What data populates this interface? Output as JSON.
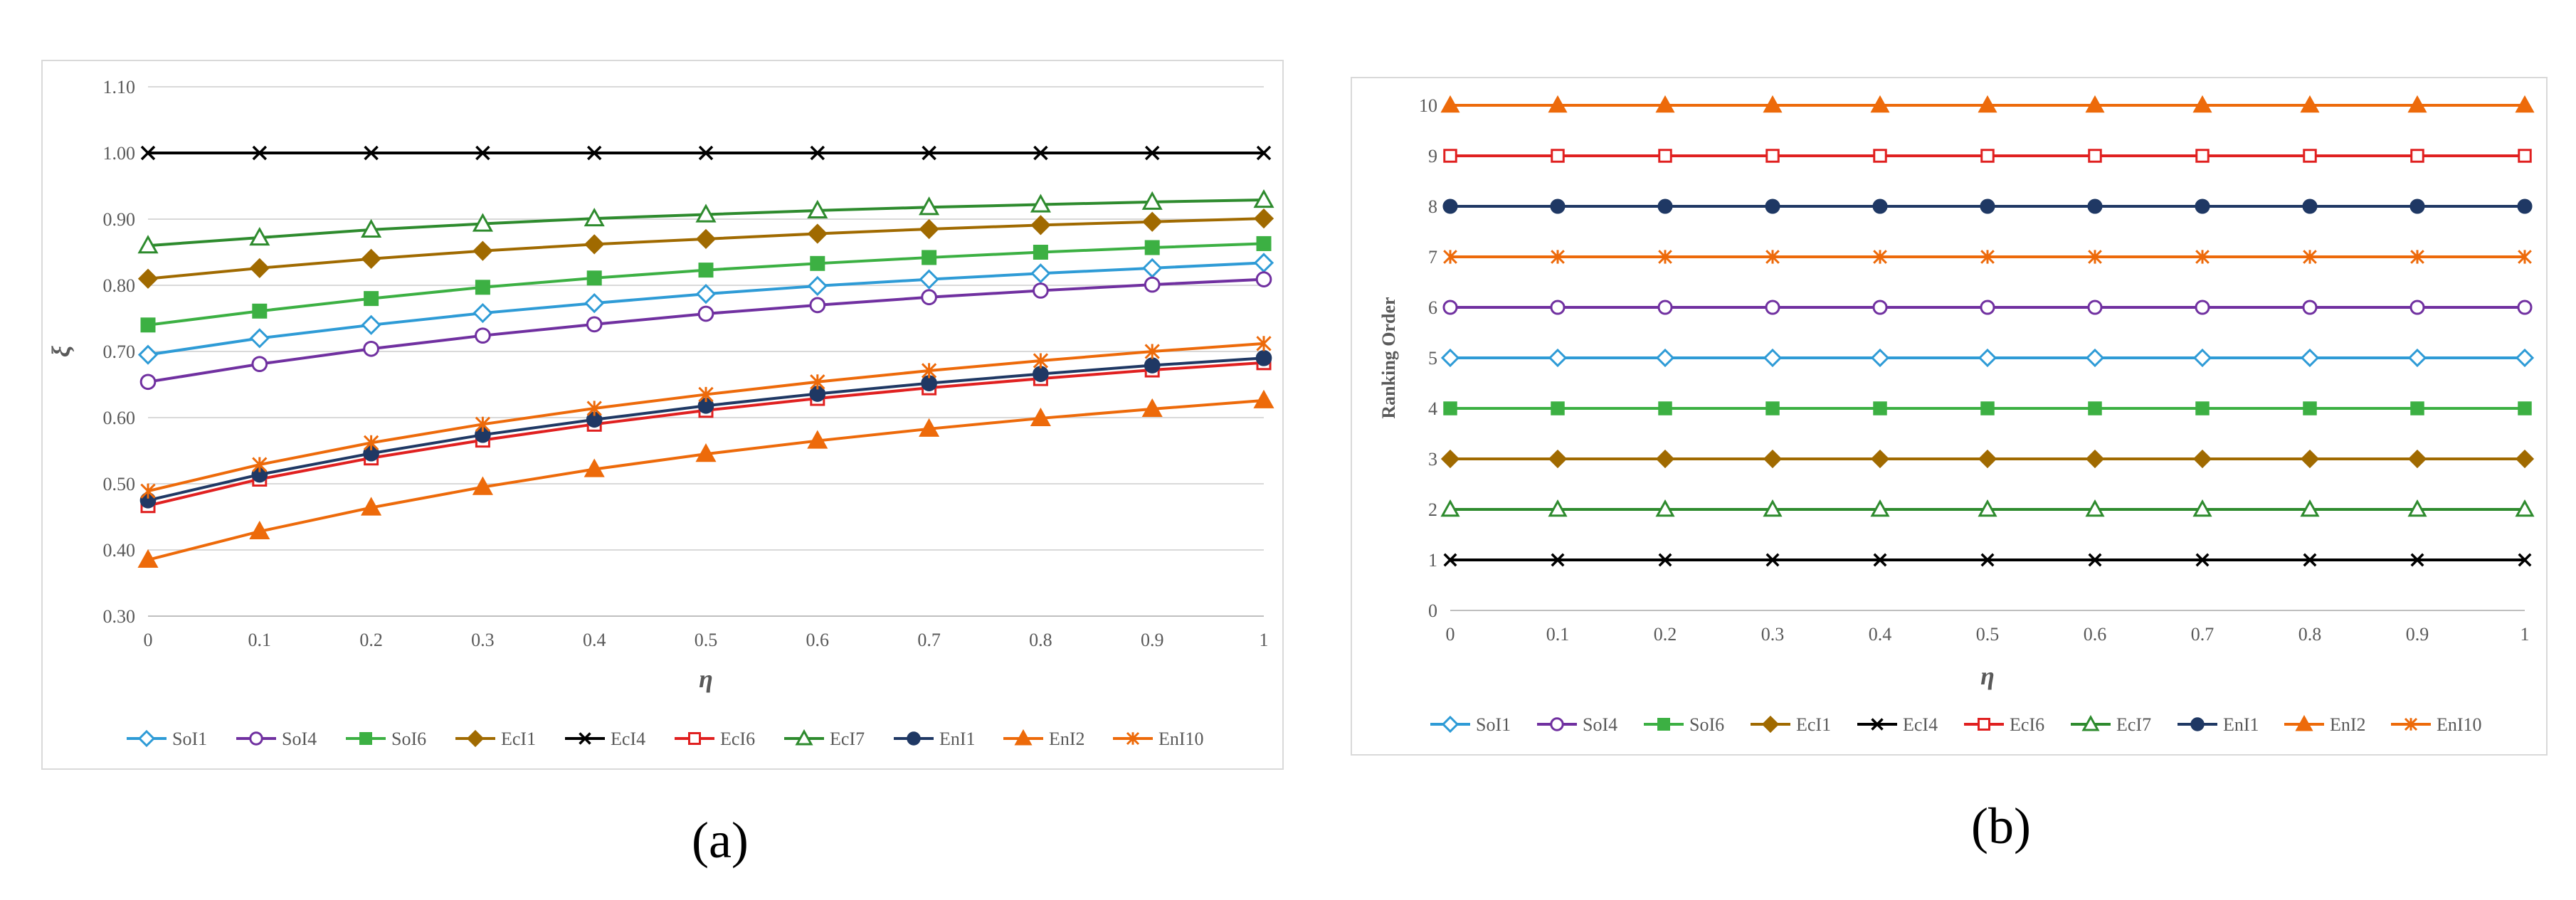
{
  "captions": {
    "a": "(a)",
    "b": "(b)"
  },
  "legend_series": [
    "SoI1",
    "SoI4",
    "SoI6",
    "EcI1",
    "EcI4",
    "EcI6",
    "EcI7",
    "EnI1",
    "EnI2",
    "EnI10"
  ],
  "styles": {
    "SoI1": {
      "color": "#2e9bd6",
      "marker": "diamond-open"
    },
    "SoI4": {
      "color": "#7030a0",
      "marker": "circle-open"
    },
    "SoI6": {
      "color": "#3cb043",
      "marker": "square-filled"
    },
    "EcI1": {
      "color": "#a06a00",
      "marker": "diamond-filled"
    },
    "EcI4": {
      "color": "#000000",
      "marker": "x"
    },
    "EcI6": {
      "color": "#e02020",
      "marker": "square-open"
    },
    "EcI7": {
      "color": "#2e8b2e",
      "marker": "triangle-open"
    },
    "EnI1": {
      "color": "#1f3864",
      "marker": "circle-filled"
    },
    "EnI2": {
      "color": "#ed6a0a",
      "marker": "triangle-filled"
    },
    "EnI10": {
      "color": "#ed6a0a",
      "marker": "star"
    }
  },
  "chart_data": [
    {
      "type": "line",
      "panel": "a",
      "title": "",
      "xlabel": "η",
      "ylabel": "ξ",
      "x": [
        0,
        0.1,
        0.2,
        0.3,
        0.4,
        0.5,
        0.6,
        0.7,
        0.8,
        0.9,
        1
      ],
      "x_tick_labels": [
        "0",
        "0.1",
        "0.2",
        "0.3",
        "0.4",
        "0.5",
        "0.6",
        "0.7",
        "0.8",
        "0.9",
        "1"
      ],
      "ylim": [
        0.3,
        1.1
      ],
      "y_tick_labels": [
        "0.30",
        "0.40",
        "0.50",
        "0.60",
        "0.70",
        "0.80",
        "0.90",
        "1.00",
        "1.10"
      ],
      "grid": "horizontal",
      "legend_position": "bottom",
      "series": [
        {
          "name": "SoI1",
          "values": [
            0.695,
            0.72,
            0.74,
            0.758,
            0.773,
            0.787,
            0.799,
            0.809,
            0.818,
            0.826,
            0.834
          ]
        },
        {
          "name": "SoI4",
          "values": [
            0.654,
            0.681,
            0.704,
            0.724,
            0.741,
            0.757,
            0.77,
            0.782,
            0.792,
            0.801,
            0.809
          ]
        },
        {
          "name": "SoI6",
          "values": [
            0.74,
            0.761,
            0.78,
            0.797,
            0.811,
            0.823,
            0.833,
            0.842,
            0.85,
            0.857,
            0.863
          ]
        },
        {
          "name": "EcI1",
          "values": [
            0.81,
            0.826,
            0.84,
            0.852,
            0.862,
            0.87,
            0.878,
            0.885,
            0.891,
            0.896,
            0.901
          ]
        },
        {
          "name": "EcI4",
          "values": [
            1.0,
            1.0,
            1.0,
            1.0,
            1.0,
            1.0,
            1.0,
            1.0,
            1.0,
            1.0,
            1.0
          ]
        },
        {
          "name": "EcI6",
          "values": [
            0.467,
            0.507,
            0.539,
            0.566,
            0.59,
            0.611,
            0.629,
            0.645,
            0.659,
            0.672,
            0.683
          ]
        },
        {
          "name": "EcI7",
          "values": [
            0.86,
            0.872,
            0.884,
            0.893,
            0.901,
            0.907,
            0.913,
            0.918,
            0.922,
            0.926,
            0.929
          ]
        },
        {
          "name": "EnI1",
          "values": [
            0.475,
            0.514,
            0.546,
            0.574,
            0.597,
            0.618,
            0.636,
            0.652,
            0.666,
            0.679,
            0.69
          ]
        },
        {
          "name": "EnI2",
          "values": [
            0.385,
            0.428,
            0.464,
            0.495,
            0.522,
            0.545,
            0.565,
            0.583,
            0.599,
            0.613,
            0.626
          ]
        },
        {
          "name": "EnI10",
          "values": [
            0.489,
            0.529,
            0.562,
            0.59,
            0.614,
            0.635,
            0.654,
            0.671,
            0.686,
            0.7,
            0.712
          ]
        }
      ]
    },
    {
      "type": "line",
      "panel": "b",
      "title": "",
      "xlabel": "η",
      "ylabel": "Ranking Order",
      "x": [
        0,
        0.1,
        0.2,
        0.3,
        0.4,
        0.5,
        0.6,
        0.7,
        0.8,
        0.9,
        1
      ],
      "x_tick_labels": [
        "0",
        "0.1",
        "0.2",
        "0.3",
        "0.4",
        "0.5",
        "0.6",
        "0.7",
        "0.8",
        "0.9",
        "1"
      ],
      "ylim": [
        0,
        10
      ],
      "y_tick_labels": [
        "0",
        "1",
        "2",
        "3",
        "4",
        "5",
        "6",
        "7",
        "8",
        "9",
        "10"
      ],
      "grid": "none",
      "legend_position": "bottom",
      "series": [
        {
          "name": "SoI1",
          "values": [
            5,
            5,
            5,
            5,
            5,
            5,
            5,
            5,
            5,
            5,
            5
          ]
        },
        {
          "name": "SoI4",
          "values": [
            6,
            6,
            6,
            6,
            6,
            6,
            6,
            6,
            6,
            6,
            6
          ]
        },
        {
          "name": "SoI6",
          "values": [
            4,
            4,
            4,
            4,
            4,
            4,
            4,
            4,
            4,
            4,
            4
          ]
        },
        {
          "name": "EcI1",
          "values": [
            3,
            3,
            3,
            3,
            3,
            3,
            3,
            3,
            3,
            3,
            3
          ]
        },
        {
          "name": "EcI4",
          "values": [
            1,
            1,
            1,
            1,
            1,
            1,
            1,
            1,
            1,
            1,
            1
          ]
        },
        {
          "name": "EcI6",
          "values": [
            9,
            9,
            9,
            9,
            9,
            9,
            9,
            9,
            9,
            9,
            9
          ]
        },
        {
          "name": "EcI7",
          "values": [
            2,
            2,
            2,
            2,
            2,
            2,
            2,
            2,
            2,
            2,
            2
          ]
        },
        {
          "name": "EnI1",
          "values": [
            8,
            8,
            8,
            8,
            8,
            8,
            8,
            8,
            8,
            8,
            8
          ]
        },
        {
          "name": "EnI2",
          "values": [
            10,
            10,
            10,
            10,
            10,
            10,
            10,
            10,
            10,
            10,
            10
          ]
        },
        {
          "name": "EnI10",
          "values": [
            7,
            7,
            7,
            7,
            7,
            7,
            7,
            7,
            7,
            7,
            7
          ]
        }
      ]
    }
  ]
}
